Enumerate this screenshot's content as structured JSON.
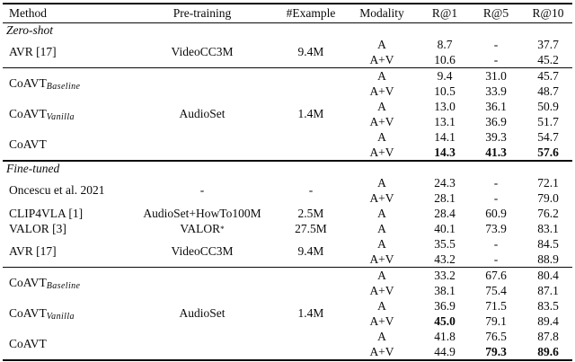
{
  "colors": {
    "text": "#0a0a0a",
    "background": "#ffffff",
    "rule": "#0a0a0a"
  },
  "table": {
    "columns": [
      "Method",
      "Pre-training",
      "#Example",
      "Modality",
      "R@1",
      "R@5",
      "R@10"
    ],
    "sections": [
      {
        "label": "Zero-shot",
        "blocks": [
          {
            "groups": [
              {
                "method": "AVR [17]",
                "pretraining": "VideoCC3M",
                "examples": "9.4M",
                "rows": [
                  {
                    "modality": "A",
                    "r1": "8.7",
                    "r5": "-",
                    "r10": "37.7",
                    "bold": []
                  },
                  {
                    "modality": "A+V",
                    "r1": "10.6",
                    "r5": "-",
                    "r10": "45.2",
                    "bold": []
                  }
                ]
              }
            ]
          },
          {
            "pretraining": "AudioSet",
            "examples": "1.4M",
            "groups": [
              {
                "method": "CoAVT",
                "sub": "Baseline",
                "rows": [
                  {
                    "modality": "A",
                    "r1": "9.4",
                    "r5": "31.0",
                    "r10": "45.7",
                    "bold": []
                  },
                  {
                    "modality": "A+V",
                    "r1": "10.5",
                    "r5": "33.9",
                    "r10": "48.7",
                    "bold": []
                  }
                ]
              },
              {
                "method": "CoAVT",
                "sub": "Vanilla",
                "rows": [
                  {
                    "modality": "A",
                    "r1": "13.0",
                    "r5": "36.1",
                    "r10": "50.9",
                    "bold": []
                  },
                  {
                    "modality": "A+V",
                    "r1": "13.1",
                    "r5": "36.9",
                    "r10": "51.7",
                    "bold": []
                  }
                ]
              },
              {
                "method": "CoAVT",
                "rows": [
                  {
                    "modality": "A",
                    "r1": "14.1",
                    "r5": "39.3",
                    "r10": "54.7",
                    "bold": []
                  },
                  {
                    "modality": "A+V",
                    "r1": "14.3",
                    "r5": "41.3",
                    "r10": "57.6",
                    "bold": [
                      "r1",
                      "r5",
                      "r10"
                    ]
                  }
                ]
              }
            ]
          }
        ]
      },
      {
        "label": "Fine-tuned",
        "blocks": [
          {
            "groups": [
              {
                "method": "Oncescu et al. 2021",
                "pretraining": "-",
                "examples": "-",
                "rows": [
                  {
                    "modality": "A",
                    "r1": "24.3",
                    "r5": "-",
                    "r10": "72.1",
                    "bold": []
                  },
                  {
                    "modality": "A+V",
                    "r1": "28.1",
                    "r5": "-",
                    "r10": "79.0",
                    "bold": []
                  }
                ]
              },
              {
                "method": "CLIP4VLA [1]",
                "pretraining": "AudioSet+HowTo100M",
                "examples": "2.5M",
                "rows": [
                  {
                    "modality": "A",
                    "r1": "28.4",
                    "r5": "60.9",
                    "r10": "76.2",
                    "bold": []
                  }
                ]
              },
              {
                "method": "VALOR [3]",
                "pretraining": "VALOR",
                "pretraining_sup": "*",
                "examples": "27.5M",
                "rows": [
                  {
                    "modality": "A",
                    "r1": "40.1",
                    "r5": "73.9",
                    "r10": "83.1",
                    "bold": []
                  }
                ]
              },
              {
                "method": "AVR [17]",
                "pretraining": "VideoCC3M",
                "examples": "9.4M",
                "rows": [
                  {
                    "modality": "A",
                    "r1": "35.5",
                    "r5": "-",
                    "r10": "84.5",
                    "bold": []
                  },
                  {
                    "modality": "A+V",
                    "r1": "43.2",
                    "r5": "-",
                    "r10": "88.9",
                    "bold": []
                  }
                ]
              }
            ]
          },
          {
            "pretraining": "AudioSet",
            "examples": "1.4M",
            "groups": [
              {
                "method": "CoAVT",
                "sub": "Baseline",
                "rows": [
                  {
                    "modality": "A",
                    "r1": "33.2",
                    "r5": "67.6",
                    "r10": "80.4",
                    "bold": []
                  },
                  {
                    "modality": "A+V",
                    "r1": "38.1",
                    "r5": "75.4",
                    "r10": "87.1",
                    "bold": []
                  }
                ]
              },
              {
                "method": "CoAVT",
                "sub": "Vanilla",
                "rows": [
                  {
                    "modality": "A",
                    "r1": "36.9",
                    "r5": "71.5",
                    "r10": "83.5",
                    "bold": []
                  },
                  {
                    "modality": "A+V",
                    "r1": "45.0",
                    "r5": "79.1",
                    "r10": "89.4",
                    "bold": [
                      "r1"
                    ]
                  }
                ]
              },
              {
                "method": "CoAVT",
                "rows": [
                  {
                    "modality": "A",
                    "r1": "41.8",
                    "r5": "76.5",
                    "r10": "87.8",
                    "bold": []
                  },
                  {
                    "modality": "A+V",
                    "r1": "44.9",
                    "r5": "79.3",
                    "r10": "89.6",
                    "bold": [
                      "r5",
                      "r10"
                    ]
                  }
                ]
              }
            ]
          }
        ]
      }
    ]
  }
}
